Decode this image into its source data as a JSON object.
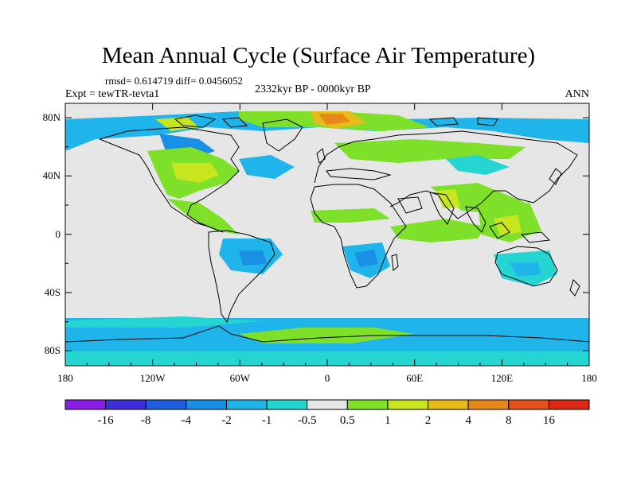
{
  "title": "Mean Annual Cycle (Surface Air Temperature)",
  "stats": "rmsd= 0.614719 diff= 0.0456052",
  "experiment": "Expt = tewTR-tevta1",
  "period": "2332kyr BP - 0000kyr BP",
  "season": "ANN",
  "axes": {
    "x_ticks": [
      "180",
      "120W",
      "60W",
      "0",
      "60E",
      "120E",
      "180"
    ],
    "y_ticks": [
      "80N",
      "40N",
      "0",
      "40S",
      "80S"
    ]
  },
  "colorbar": {
    "labels": [
      "-16",
      "-8",
      "-4",
      "-2",
      "-1",
      "-0.5",
      "0.5",
      "1",
      "2",
      "4",
      "8",
      "16"
    ],
    "colors": [
      "#8a1ee6",
      "#3c2fd9",
      "#1d5fe0",
      "#1a8fe6",
      "#1fb4ea",
      "#25d5d2",
      "#e6e6e6",
      "#7fe02a",
      "#c8e61e",
      "#e6bb1a",
      "#e6891a",
      "#e6501a",
      "#dc2814"
    ]
  },
  "colors": {
    "ocean_background": "#e6e6e6",
    "coastline": "#000000"
  }
}
